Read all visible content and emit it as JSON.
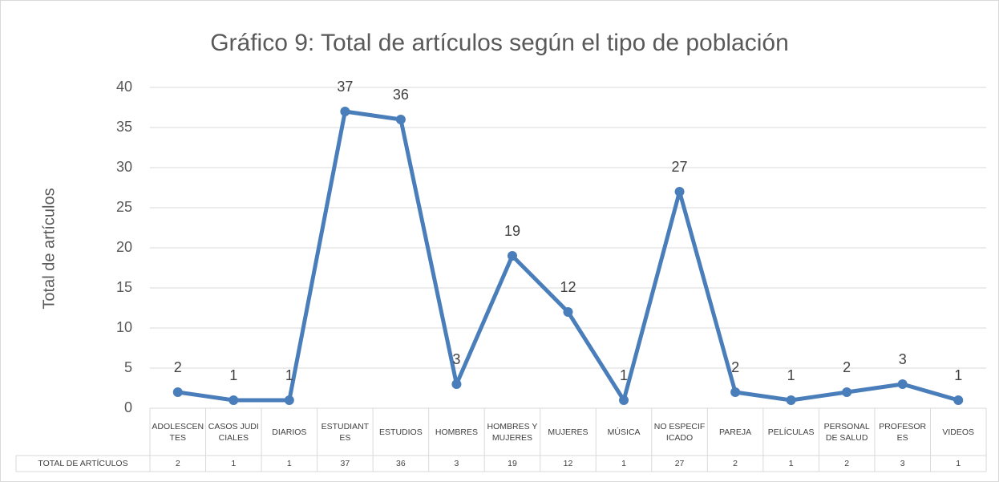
{
  "chart_data": {
    "type": "line",
    "title": "Gráfico 9: Total de artículos según el tipo de población",
    "y_label": "Total de artículos",
    "categories": [
      "ADOLESCENTES",
      "CASOS JUDICIALES",
      "DIARIOS",
      "ESTUDIANTES",
      "ESTUDIOS",
      "HOMBRES",
      "HOMBRES Y MUJERES",
      "MUJERES",
      "MÚSICA",
      "NO ESPECIFICADO",
      "PAREJA",
      "PELÍCULAS",
      "PERSONAL DE SALUD",
      "PROFESORES",
      "VIDEOS"
    ],
    "series": [
      {
        "name": "TOTAL DE ARTÍCULOS",
        "color": "#4a7ebb",
        "values": [
          2,
          1,
          1,
          37,
          36,
          3,
          19,
          12,
          1,
          27,
          2,
          1,
          2,
          3,
          1
        ]
      }
    ],
    "ylim": [
      0,
      40
    ],
    "yticks": [
      0,
      5,
      10,
      15,
      20,
      25,
      30,
      35,
      40
    ],
    "grid": true,
    "data_labels": true,
    "data_table": true
  }
}
